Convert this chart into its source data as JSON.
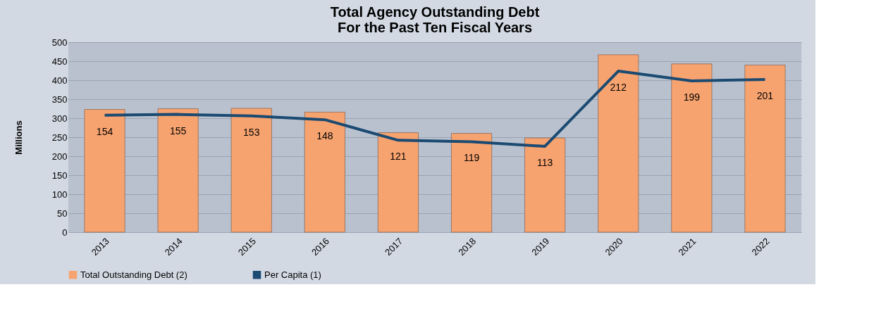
{
  "chart_data": {
    "type": "bar",
    "title": "Total Agency Outstanding Debt\nFor the Past Ten Fiscal Years",
    "ylabel": "Millions",
    "categories": [
      "2013",
      "2014",
      "2015",
      "2016",
      "2017",
      "2018",
      "2019",
      "2020",
      "2021",
      "2022"
    ],
    "series": [
      {
        "name": "Total Outstanding Debt (2)",
        "color": "#f7a36f",
        "values": [
          323,
          325,
          326,
          316,
          262,
          260,
          248,
          467,
          443,
          440
        ]
      },
      {
        "name": "Per Capita (1)",
        "type": "line",
        "axis": "y2",
        "color": "#1b4a72",
        "data_labels": true,
        "values": [
          154,
          155,
          153,
          148,
          121,
          119,
          113,
          212,
          199,
          201
        ]
      }
    ],
    "ylim": [
      0,
      500
    ],
    "yticks": [
      0,
      50,
      100,
      150,
      200,
      250,
      300,
      350,
      400,
      450,
      500
    ],
    "y2lim": [
      0,
      250
    ],
    "grid": "y",
    "legend": "bottom"
  }
}
